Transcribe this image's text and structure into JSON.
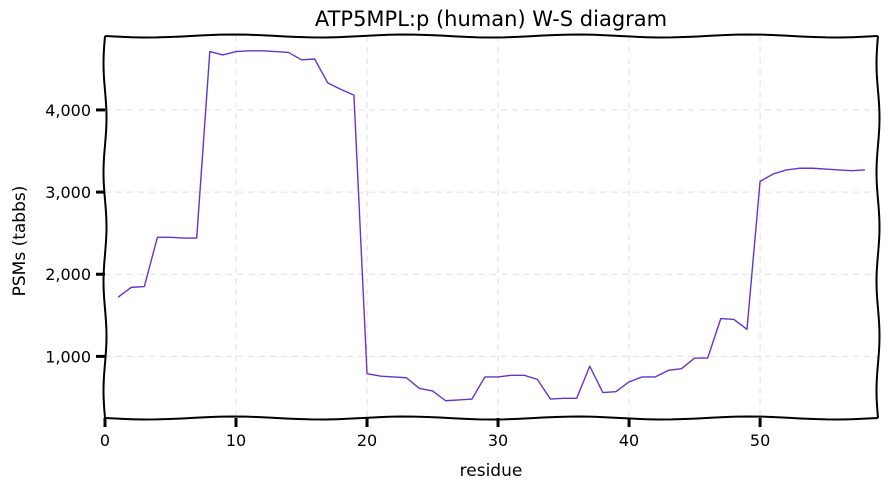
{
  "chart_data": {
    "type": "line",
    "title": "ATP5MPL:p (human) W-S diagram",
    "xlabel": "residue",
    "ylabel": "PSMs (tabbs)",
    "xlim": [
      0,
      59
    ],
    "ylim": [
      250,
      4900
    ],
    "xticks": [
      0,
      10,
      20,
      30,
      40,
      50
    ],
    "yticks": [
      1000,
      2000,
      3000,
      4000
    ],
    "xtick_labels": [
      "0",
      "10",
      "20",
      "30",
      "40",
      "50"
    ],
    "ytick_labels": [
      "1,000",
      "2,000",
      "3,000",
      "4,000"
    ],
    "grid": true,
    "legend": "none",
    "colors": {
      "line": "#6633cc",
      "grid": "#e0e0e0",
      "axis": "#000000"
    },
    "series": [
      {
        "x": [
          1,
          2,
          3,
          4,
          5,
          6,
          7,
          8,
          9,
          10,
          11,
          12,
          13,
          14,
          15,
          16,
          17,
          18,
          19,
          20,
          21,
          22,
          23,
          24,
          25,
          26,
          27,
          28,
          29,
          30,
          31,
          32,
          33,
          34,
          35,
          36,
          37,
          38,
          39,
          40,
          41,
          42,
          43,
          44,
          45,
          46,
          47,
          48,
          49,
          50,
          51,
          52,
          53,
          54,
          55,
          56,
          57,
          58
        ],
        "values": [
          1720,
          1840,
          1850,
          2450,
          2450,
          2440,
          2440,
          4710,
          4670,
          4710,
          4720,
          4720,
          4710,
          4700,
          4610,
          4620,
          4330,
          4250,
          4180,
          790,
          760,
          750,
          740,
          610,
          580,
          460,
          470,
          480,
          750,
          750,
          770,
          770,
          720,
          480,
          490,
          490,
          880,
          560,
          570,
          690,
          750,
          750,
          830,
          850,
          980,
          980,
          1460,
          1450,
          1330,
          3130,
          3220,
          3270,
          3290,
          3290,
          3280,
          3270,
          3260,
          3270
        ]
      }
    ]
  }
}
